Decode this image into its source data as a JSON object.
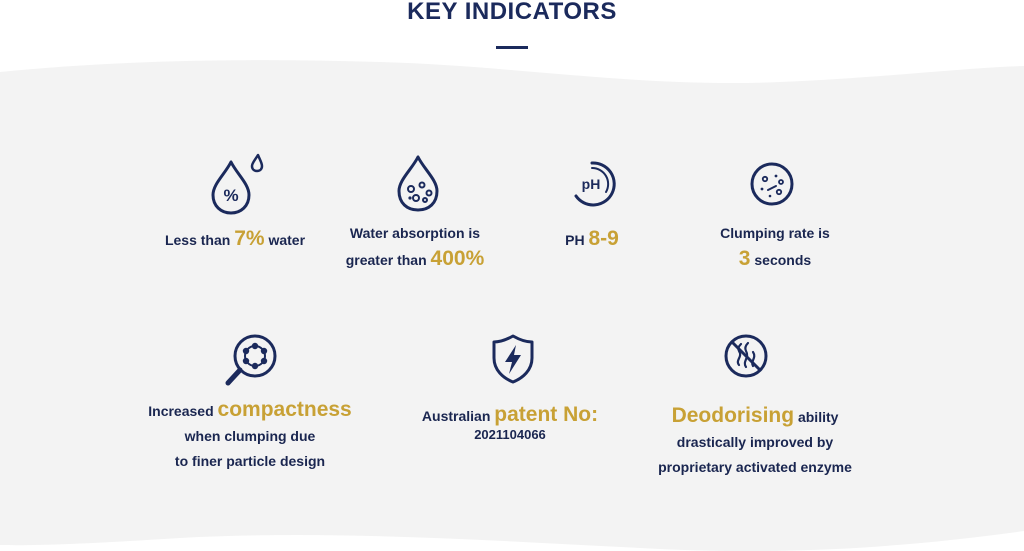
{
  "header": {
    "title": "KEY INDICATORS"
  },
  "colors": {
    "navy": "#1b2a5c",
    "gold": "#c8a135",
    "background_wave": "#f3f3f3"
  },
  "indicators": [
    {
      "icon": "water-percent-drop-icon",
      "prefix": "Less than",
      "highlight": "7%",
      "suffix": "water"
    },
    {
      "icon": "absorption-drop-icon",
      "line1": "Water absorption is",
      "prefix": "greater than",
      "highlight": "400%"
    },
    {
      "icon": "ph-icon",
      "prefix": "PH",
      "highlight": "8-9"
    },
    {
      "icon": "clumping-circle-icon",
      "line1": "Clumping rate is",
      "highlight": "3",
      "suffix": "seconds"
    },
    {
      "icon": "magnifier-particles-icon",
      "prefix": "Increased",
      "highlight": "compactness",
      "line2": "when clumping due",
      "line3": "to finer particle design"
    },
    {
      "icon": "shield-lightning-icon",
      "prefix": "Australian",
      "highlight": "patent No",
      "colon": ":",
      "number": "2021104066"
    },
    {
      "icon": "no-odor-icon",
      "highlight": "Deodorising",
      "suffix": "ability",
      "line2": "drastically improved by",
      "line3": "proprietary activated enzyme"
    }
  ]
}
